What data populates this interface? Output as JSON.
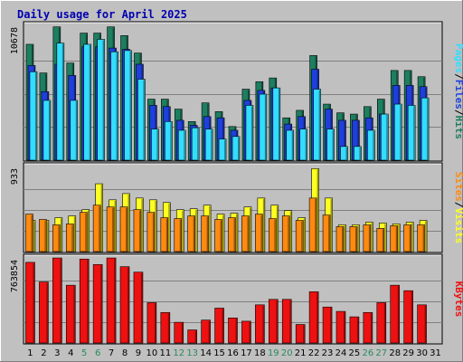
{
  "title": "Daily usage for April 2025",
  "colors": {
    "hits": "#1e7e60",
    "files": "#1f3fdc",
    "pages": "#33ddff",
    "visits": "#ffff22",
    "sites": "#ff8a10",
    "kbytes": "#ee1111",
    "weekend": "#2a8a5a",
    "weekday": "#000000",
    "title": "#0000b0"
  },
  "chart_data": [
    {
      "type": "bar",
      "name": "hits-files-pages",
      "ytick_label": "10678",
      "ymax": 10678,
      "right_labels": [
        "Pages",
        "/",
        "Files",
        "/",
        "Hits"
      ],
      "categories": [
        "1",
        "2",
        "3",
        "4",
        "5",
        "6",
        "7",
        "8",
        "9",
        "10",
        "11",
        "12",
        "13",
        "14",
        "15",
        "16",
        "17",
        "18",
        "19",
        "20",
        "21",
        "22",
        "23",
        "24",
        "25",
        "26",
        "27",
        "28",
        "29",
        "30",
        "31"
      ],
      "series": [
        {
          "name": "Hits",
          "values": [
            9300,
            7000,
            10700,
            7800,
            10200,
            10200,
            10700,
            10000,
            8600,
            4900,
            4900,
            4100,
            3100,
            4600,
            3900,
            2700,
            5700,
            6300,
            6600,
            3400,
            4000,
            8400,
            4500,
            3800,
            3700,
            4300,
            4900,
            7200,
            7200,
            6700,
            0
          ]
        },
        {
          "name": "Files",
          "values": [
            7600,
            5500,
            7700,
            6800,
            9100,
            9100,
            9000,
            8900,
            7700,
            4400,
            4300,
            3200,
            2800,
            3500,
            3400,
            2400,
            4800,
            5600,
            5800,
            2900,
            3500,
            7300,
            4100,
            3200,
            3200,
            3400,
            3700,
            6000,
            6000,
            5900,
            0
          ]
        },
        {
          "name": "Pages",
          "values": [
            7100,
            4800,
            9400,
            4800,
            9300,
            9700,
            8700,
            8800,
            6500,
            2500,
            3100,
            2400,
            2600,
            2500,
            1700,
            1900,
            4400,
            5300,
            5800,
            2400,
            2500,
            5700,
            2500,
            1100,
            1100,
            2400,
            3700,
            4500,
            4400,
            5000,
            0
          ]
        }
      ]
    },
    {
      "type": "bar",
      "name": "visits-sites",
      "ytick_label": "933",
      "ymax": 933,
      "right_labels": [
        "Sites",
        "/",
        "Visits"
      ],
      "categories": [
        "1",
        "2",
        "3",
        "4",
        "5",
        "6",
        "7",
        "8",
        "9",
        "10",
        "11",
        "12",
        "13",
        "14",
        "15",
        "16",
        "17",
        "18",
        "19",
        "20",
        "21",
        "22",
        "23",
        "24",
        "25",
        "26",
        "27",
        "28",
        "29",
        "30",
        "31"
      ],
      "series": [
        {
          "name": "Visits",
          "values": [
            350,
            350,
            380,
            400,
            470,
            760,
            580,
            650,
            600,
            580,
            550,
            470,
            480,
            520,
            420,
            430,
            500,
            600,
            520,
            460,
            380,
            930,
            600,
            300,
            300,
            330,
            320,
            310,
            330,
            350,
            0
          ]
        },
        {
          "name": "Sites",
          "values": [
            420,
            360,
            300,
            310,
            440,
            520,
            500,
            500,
            470,
            440,
            380,
            370,
            400,
            400,
            360,
            380,
            400,
            420,
            370,
            400,
            350,
            600,
            410,
            280,
            280,
            300,
            260,
            290,
            300,
            300,
            0
          ]
        }
      ]
    },
    {
      "type": "bar",
      "name": "kbytes",
      "ytick_label": "763854",
      "ymax": 763854,
      "right_labels": [
        "KBytes"
      ],
      "categories": [
        "1",
        "2",
        "3",
        "4",
        "5",
        "6",
        "7",
        "8",
        "9",
        "10",
        "11",
        "12",
        "13",
        "14",
        "15",
        "16",
        "17",
        "18",
        "19",
        "20",
        "21",
        "22",
        "23",
        "24",
        "25",
        "26",
        "27",
        "28",
        "29",
        "30",
        "31"
      ],
      "series": [
        {
          "name": "KBytes",
          "values": [
            740000,
            560000,
            780000,
            530000,
            770000,
            720000,
            780000,
            700000,
            650000,
            370000,
            280000,
            190000,
            120000,
            210000,
            320000,
            230000,
            200000,
            350000,
            400000,
            400000,
            170000,
            470000,
            330000,
            290000,
            240000,
            280000,
            370000,
            530000,
            480000,
            350000,
            0
          ]
        }
      ]
    }
  ]
}
